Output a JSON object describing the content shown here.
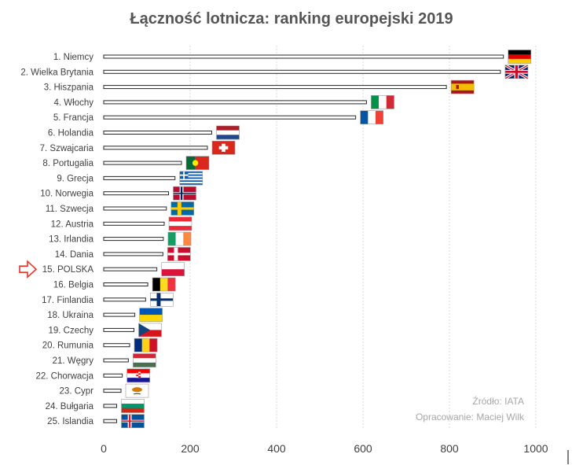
{
  "chart_data": {
    "type": "bar",
    "orientation": "horizontal",
    "title": "Łączność lotnicza: ranking europejski 2019",
    "xlabel": "",
    "ylabel": "",
    "xlim": [
      0,
      1000
    ],
    "xticks": [
      0,
      200,
      400,
      600,
      800,
      1000
    ],
    "grid": true,
    "categories": [
      "1. Niemcy",
      "2. Wielka Brytania",
      "3. Hiszpania",
      "4. Włochy",
      "5. Francja",
      "6. Holandia",
      "7. Szwajcaria",
      "8. Portugalia",
      "9. Grecja",
      "10. Norwegia",
      "11. Szwecja",
      "12. Austria",
      "13. Irlandia",
      "14. Dania",
      "15. POLSKA",
      "16. Belgia",
      "17. Finlandia",
      "18. Ukraina",
      "19. Czechy",
      "20. Rumunia",
      "21. Węgry",
      "22. Chorwacja",
      "23. Cypr",
      "24. Bułgaria",
      "25. Islandia"
    ],
    "values": [
      925,
      918,
      793,
      608,
      583,
      250,
      240,
      180,
      165,
      150,
      145,
      140,
      138,
      137,
      123,
      102,
      97,
      72,
      70,
      60,
      57,
      43,
      40,
      30,
      30
    ],
    "flags": [
      "germany",
      "uk",
      "spain",
      "italy",
      "france",
      "netherlands",
      "switzerland",
      "portugal",
      "greece",
      "norway",
      "sweden",
      "austria",
      "ireland",
      "denmark",
      "poland",
      "belgium",
      "finland",
      "ukraine",
      "czechia",
      "romania",
      "hungary",
      "croatia",
      "cyprus",
      "bulgaria",
      "iceland"
    ],
    "highlight_index": 14,
    "highlight_marker": "arrow-icon",
    "source_text": "Źródło: IATA",
    "author_text": "Opracowanie: Maciej Wilk"
  }
}
